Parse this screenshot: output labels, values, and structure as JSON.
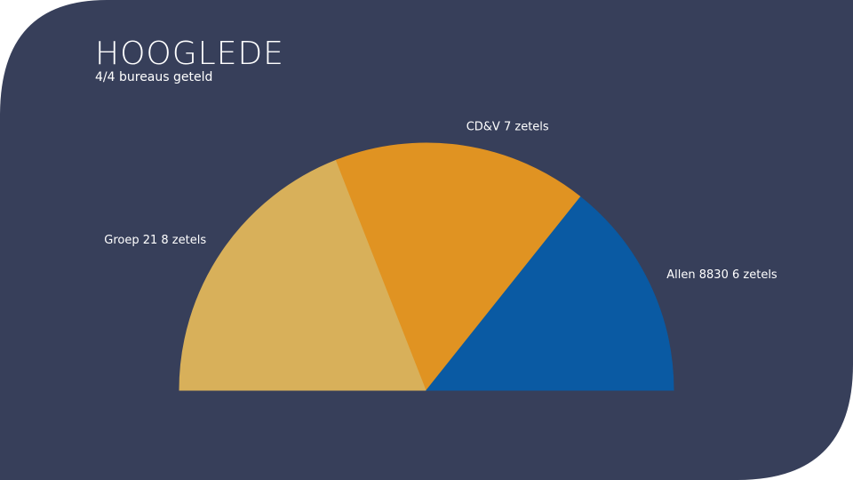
{
  "chart_data": {
    "type": "semi-pie",
    "title": "HOOGLEDE",
    "subtitle": "4/4 bureaus geteld",
    "categories": [
      "Groep 21",
      "CD&V",
      "Allen 8830"
    ],
    "values": [
      8,
      7,
      6
    ],
    "value_labels": [
      "8 zetels",
      "7 zetels",
      "6 zetels"
    ],
    "colors": [
      "#d8b05a",
      "#e09322",
      "#0a5aa3"
    ]
  }
}
